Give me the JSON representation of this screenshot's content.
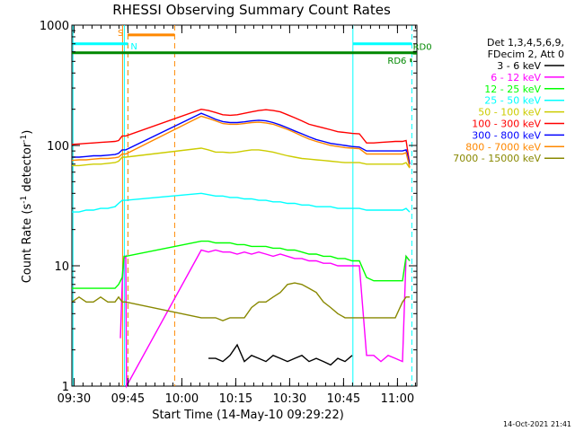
{
  "chart_data": {
    "type": "line",
    "title": "RHESSI Observing Summary Count Rates",
    "xlabel": "Start Time (14-May-10 09:29:22)",
    "ylabel_main": "Count Rate (s",
    "ylabel_sup1": "-1",
    "ylabel_mid": " detector",
    "ylabel_sup2": "-1",
    "ylabel_end": ")",
    "y_scale": "log",
    "ylim": [
      1,
      1000
    ],
    "xlim_minutes": [
      0,
      96
    ],
    "x_ticks": [
      {
        "label": "09:30",
        "m": 0.6
      },
      {
        "label": "09:45",
        "m": 15.6
      },
      {
        "label": "10:00",
        "m": 30.6
      },
      {
        "label": "10:15",
        "m": 45.6
      },
      {
        "label": "10:30",
        "m": 60.6
      },
      {
        "label": "10:45",
        "m": 75.6
      },
      {
        "label": "11:00",
        "m": 90.6
      }
    ],
    "y_ticks": [
      {
        "label": "1",
        "v": 1
      },
      {
        "label": "10",
        "v": 10
      },
      {
        "label": "100",
        "v": 100
      },
      {
        "label": "1000",
        "v": 1000
      }
    ],
    "legend_header": [
      "Det 1,3,4,5,6,9,",
      "FDecim 2, Att 0"
    ],
    "legend_placement": "right",
    "series": [
      {
        "name": "3 - 6 keV",
        "color": "#000000",
        "x": [
          0,
          2,
          4,
          6,
          8,
          10,
          12,
          14,
          14.5,
          16,
          20,
          30,
          36,
          38,
          40,
          42,
          44,
          46,
          48,
          50,
          52,
          54,
          56,
          58,
          60,
          62,
          64,
          66,
          68,
          70,
          72,
          74,
          76,
          78,
          80,
          82,
          84,
          86,
          88,
          90,
          92,
          94,
          95
        ],
        "y": [
          null,
          null,
          null,
          null,
          null,
          null,
          null,
          null,
          null,
          null,
          null,
          null,
          null,
          1.7,
          1.7,
          1.6,
          1.8,
          2.2,
          1.6,
          1.8,
          1.7,
          1.6,
          1.8,
          1.7,
          1.6,
          1.7,
          1.8,
          1.6,
          1.7,
          1.6,
          1.5,
          1.7,
          1.6,
          1.8,
          null,
          null,
          null,
          null,
          null,
          null,
          null,
          null,
          null
        ]
      },
      {
        "name": "6 - 12 keV",
        "color": "#ff00ff",
        "x": [
          13.5,
          14,
          14.5,
          15,
          15.2,
          36,
          38,
          40,
          42,
          44,
          46,
          48,
          50,
          52,
          54,
          56,
          58,
          60,
          62,
          64,
          66,
          68,
          70,
          72,
          74,
          76,
          78,
          80,
          82,
          84,
          86,
          88,
          90,
          92,
          93,
          94
        ],
        "y": [
          2.5,
          7,
          11.5,
          12,
          1,
          13.5,
          13,
          13.5,
          13,
          13,
          12.5,
          13,
          12.5,
          13,
          12.5,
          12,
          12.5,
          12,
          11.5,
          11.5,
          11,
          11,
          10.5,
          10.5,
          10,
          10,
          10,
          10,
          1.8,
          1.8,
          1.6,
          1.8,
          1.7,
          1.6,
          12,
          11
        ]
      },
      {
        "name": "12 - 25 keV",
        "color": "#00ff00",
        "x": [
          0,
          2,
          4,
          6,
          8,
          10,
          12,
          13,
          14,
          14.5,
          15,
          36,
          38,
          40,
          42,
          44,
          46,
          48,
          50,
          52,
          54,
          56,
          58,
          60,
          62,
          64,
          66,
          68,
          70,
          72,
          74,
          76,
          78,
          80,
          82,
          84,
          86,
          88,
          90,
          92,
          93,
          94
        ],
        "y": [
          6.5,
          6.5,
          6.5,
          6.5,
          6.5,
          6.5,
          6.5,
          7,
          8,
          12,
          12,
          16,
          16,
          15.5,
          15.5,
          15.5,
          15,
          15,
          14.5,
          14.5,
          14.5,
          14,
          14,
          13.5,
          13.5,
          13,
          12.5,
          12.5,
          12,
          12,
          11.5,
          11.5,
          11,
          11,
          8,
          7.5,
          7.5,
          7.5,
          7.5,
          7.5,
          12,
          11
        ]
      },
      {
        "name": "25 - 50 keV",
        "color": "#00ffff",
        "x": [
          0,
          2,
          4,
          6,
          8,
          10,
          12,
          13,
          14,
          15,
          36,
          38,
          40,
          42,
          44,
          46,
          48,
          50,
          52,
          54,
          56,
          58,
          60,
          62,
          64,
          66,
          68,
          70,
          72,
          74,
          76,
          78,
          80,
          82,
          84,
          86,
          88,
          90,
          92,
          93,
          94
        ],
        "y": [
          28,
          28,
          29,
          29,
          30,
          30,
          31,
          33,
          35,
          35,
          40,
          39,
          38,
          38,
          37,
          37,
          36,
          36,
          35,
          35,
          34,
          34,
          33,
          33,
          32,
          32,
          31,
          31,
          31,
          30,
          30,
          30,
          30,
          29,
          29,
          29,
          29,
          29,
          29,
          30,
          28
        ]
      },
      {
        "name": "50 - 100 keV",
        "color": "#cccc00",
        "x": [
          0,
          2,
          4,
          6,
          8,
          10,
          12,
          13,
          14,
          15,
          36,
          38,
          40,
          42,
          44,
          46,
          48,
          50,
          52,
          54,
          56,
          58,
          60,
          62,
          64,
          66,
          68,
          70,
          72,
          74,
          76,
          78,
          80,
          82,
          84,
          86,
          88,
          90,
          92,
          93,
          94
        ],
        "y": [
          68,
          68,
          69,
          70,
          70,
          71,
          72,
          74,
          80,
          80,
          95,
          92,
          88,
          88,
          87,
          88,
          90,
          92,
          92,
          90,
          88,
          85,
          82,
          80,
          78,
          77,
          76,
          75,
          74,
          73,
          72,
          72,
          72,
          70,
          70,
          70,
          70,
          70,
          70,
          72,
          65
        ]
      },
      {
        "name": "100 - 300 keV",
        "color": "#ff0000",
        "x": [
          0,
          2,
          4,
          6,
          8,
          10,
          12,
          13,
          14,
          15,
          36,
          38,
          40,
          42,
          44,
          46,
          48,
          50,
          52,
          54,
          56,
          58,
          60,
          62,
          64,
          66,
          68,
          70,
          72,
          74,
          76,
          78,
          80,
          82,
          84,
          86,
          88,
          90,
          92,
          93,
          94
        ],
        "y": [
          102,
          103,
          104,
          105,
          106,
          107,
          108,
          110,
          120,
          120,
          200,
          195,
          188,
          180,
          178,
          180,
          185,
          190,
          195,
          198,
          195,
          190,
          180,
          170,
          160,
          150,
          145,
          140,
          135,
          130,
          128,
          126,
          125,
          105,
          105,
          106,
          107,
          108,
          108,
          110,
          70
        ]
      },
      {
        "name": "300 - 800 keV",
        "color": "#0000ff",
        "x": [
          0,
          2,
          4,
          6,
          8,
          10,
          12,
          13,
          14,
          15,
          36,
          38,
          40,
          42,
          44,
          46,
          48,
          50,
          52,
          54,
          56,
          58,
          60,
          62,
          64,
          66,
          68,
          70,
          72,
          74,
          76,
          78,
          80,
          82,
          84,
          86,
          88,
          90,
          92,
          93,
          94
        ],
        "y": [
          80,
          80,
          81,
          82,
          82,
          83,
          84,
          86,
          92,
          92,
          185,
          175,
          165,
          158,
          155,
          155,
          157,
          160,
          162,
          160,
          155,
          148,
          140,
          132,
          125,
          118,
          112,
          108,
          104,
          102,
          100,
          98,
          97,
          90,
          90,
          90,
          90,
          90,
          90,
          92,
          70
        ]
      },
      {
        "name": "800 - 7000 keV",
        "color": "#ff8800",
        "x": [
          0,
          2,
          4,
          6,
          8,
          10,
          12,
          13,
          14,
          15,
          36,
          38,
          40,
          42,
          44,
          46,
          48,
          50,
          52,
          54,
          56,
          58,
          60,
          62,
          64,
          66,
          68,
          70,
          72,
          74,
          76,
          78,
          80,
          82,
          84,
          86,
          88,
          90,
          92,
          93,
          94
        ],
        "y": [
          75,
          76,
          76,
          77,
          78,
          78,
          79,
          80,
          85,
          85,
          175,
          168,
          160,
          152,
          150,
          150,
          152,
          155,
          156,
          154,
          150,
          143,
          136,
          128,
          120,
          113,
          108,
          104,
          100,
          98,
          96,
          95,
          94,
          85,
          85,
          85,
          85,
          85,
          85,
          87,
          66
        ]
      },
      {
        "name": "7000 - 15000 keV",
        "color": "#888800",
        "x": [
          0,
          2,
          4,
          6,
          8,
          10,
          12,
          13,
          14,
          15,
          36,
          38,
          40,
          42,
          44,
          46,
          48,
          50,
          52,
          54,
          56,
          58,
          60,
          62,
          64,
          66,
          68,
          70,
          72,
          74,
          76,
          78,
          80,
          82,
          84,
          86,
          88,
          90,
          92,
          93,
          94
        ],
        "y": [
          5,
          5.5,
          5,
          5,
          5.5,
          5,
          5,
          5.5,
          5,
          5,
          3.7,
          3.7,
          3.7,
          3.5,
          3.7,
          3.7,
          3.7,
          4.5,
          5,
          5,
          5.5,
          6,
          7,
          7.2,
          7,
          6.5,
          6,
          5,
          4.5,
          4,
          3.7,
          3.7,
          3.7,
          3.7,
          3.7,
          3.7,
          3.7,
          3.7,
          5,
          5.5,
          5.5
        ]
      }
    ],
    "annotations": [
      {
        "label": "S",
        "type": "bar",
        "color": "#ff8800",
        "m0": 15.6,
        "m1": 28.6,
        "level": 830
      },
      {
        "label": "N",
        "type": "bar",
        "color": "#00ffff",
        "m0": 0.3,
        "m1": 15.6,
        "level": 700
      },
      {
        "label": "",
        "type": "bar",
        "color": "#00ffff",
        "m0": 78.2,
        "m1": 94.6,
        "level": 700
      },
      {
        "label": "",
        "type": "bar",
        "color": "#008800",
        "m0": 0,
        "m1": 96,
        "level": 590
      },
      {
        "label": "RD6",
        "type": "tick",
        "color": "#008800",
        "m0": 94.1,
        "m1": 94.6,
        "level": 510
      },
      {
        "label": "RD0",
        "type": "tick",
        "color": "#008800",
        "m0": 94.9,
        "m1": 96,
        "level": 590
      }
    ],
    "vlines": [
      {
        "m": 0.3,
        "color": "#00ffff",
        "dash": false
      },
      {
        "m": 14.1,
        "color": "#ff8800",
        "dash": false
      },
      {
        "m": 14.6,
        "color": "#00ffff",
        "dash": false
      },
      {
        "m": 15.6,
        "color": "#00ffff",
        "dash": true
      },
      {
        "m": 15.6,
        "color": "#ff8800",
        "dash": true
      },
      {
        "m": 28.6,
        "color": "#ff8800",
        "dash": true
      },
      {
        "m": 78.2,
        "color": "#00ffff",
        "dash": false
      },
      {
        "m": 94.6,
        "color": "#00ffff",
        "dash": true
      }
    ]
  },
  "footer": {
    "date": "14-Oct-2021 21:41"
  }
}
